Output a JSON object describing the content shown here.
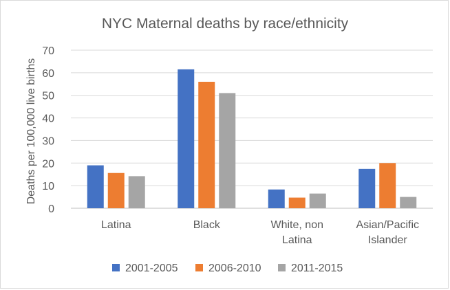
{
  "chart_data": {
    "type": "bar",
    "title": "NYC Maternal deaths by race/ethnicity",
    "xlabel": "",
    "ylabel": "Deaths per 100,000 live births",
    "ylim": [
      0,
      70
    ],
    "yticks": [
      0,
      10,
      20,
      30,
      40,
      50,
      60,
      70
    ],
    "grid": true,
    "legend_position": "bottom",
    "categories": [
      [
        "Latina"
      ],
      [
        "Black"
      ],
      [
        "White, non",
        "Latina"
      ],
      [
        "Asian/Pacific",
        "Islander"
      ]
    ],
    "series": [
      {
        "name": "2001-2005",
        "color": "#4472c4",
        "values": [
          19,
          61.5,
          8.3,
          17.4
        ]
      },
      {
        "name": "2006-2010",
        "color": "#ed7d31",
        "values": [
          15.6,
          56,
          4.7,
          20
        ]
      },
      {
        "name": "2011-2015",
        "color": "#a5a5a5",
        "values": [
          14.2,
          51,
          6.5,
          5
        ]
      }
    ]
  }
}
